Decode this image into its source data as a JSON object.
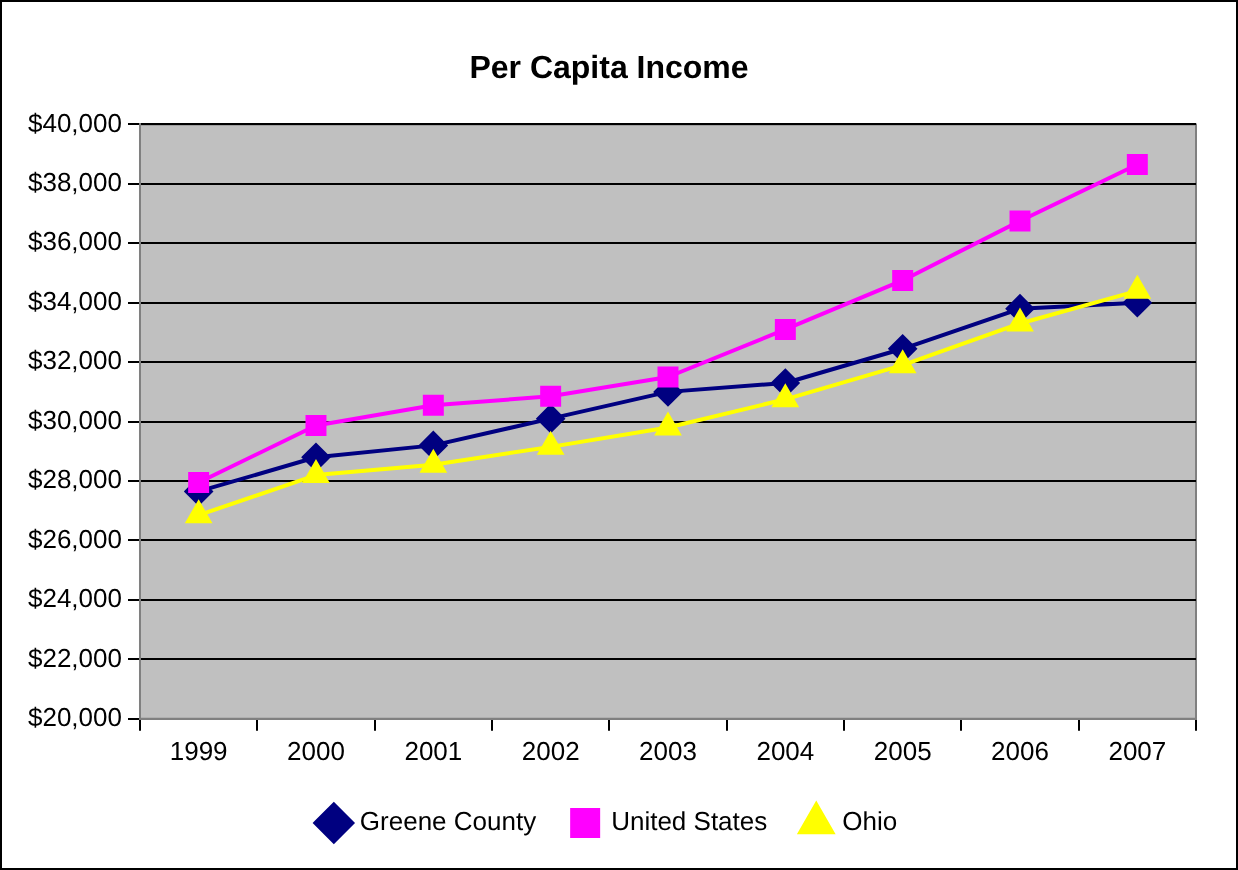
{
  "chart_data": {
    "type": "line",
    "title": "Per Capita Income",
    "categories": [
      "1999",
      "2000",
      "2001",
      "2002",
      "2003",
      "2004",
      "2005",
      "2006",
      "2007"
    ],
    "series": [
      {
        "name": "Greene County",
        "color": "#000080",
        "marker": "diamond",
        "values": [
          27650,
          28800,
          29200,
          30100,
          31000,
          31300,
          32450,
          33800,
          34000
        ]
      },
      {
        "name": "United States",
        "color": "#ff00ff",
        "marker": "square",
        "values": [
          27950,
          29870,
          30550,
          30850,
          31500,
          33100,
          34750,
          36750,
          38650
        ]
      },
      {
        "name": "Ohio",
        "color": "#ffff00",
        "marker": "triangle",
        "values": [
          26850,
          28200,
          28550,
          29150,
          29800,
          30750,
          31900,
          33300,
          34400
        ]
      }
    ],
    "ylim": [
      20000,
      40000
    ],
    "yticks": [
      {
        "value": 20000,
        "label": "$20,000"
      },
      {
        "value": 22000,
        "label": "$22,000"
      },
      {
        "value": 24000,
        "label": "$24,000"
      },
      {
        "value": 26000,
        "label": "$26,000"
      },
      {
        "value": 28000,
        "label": "$28,000"
      },
      {
        "value": 30000,
        "label": "$30,000"
      },
      {
        "value": 32000,
        "label": "$32,000"
      },
      {
        "value": 34000,
        "label": "$34,000"
      },
      {
        "value": 36000,
        "label": "$36,000"
      },
      {
        "value": 38000,
        "label": "$38,000"
      },
      {
        "value": 40000,
        "label": "$40,000"
      }
    ],
    "grid": "y",
    "legend": "bottom"
  }
}
